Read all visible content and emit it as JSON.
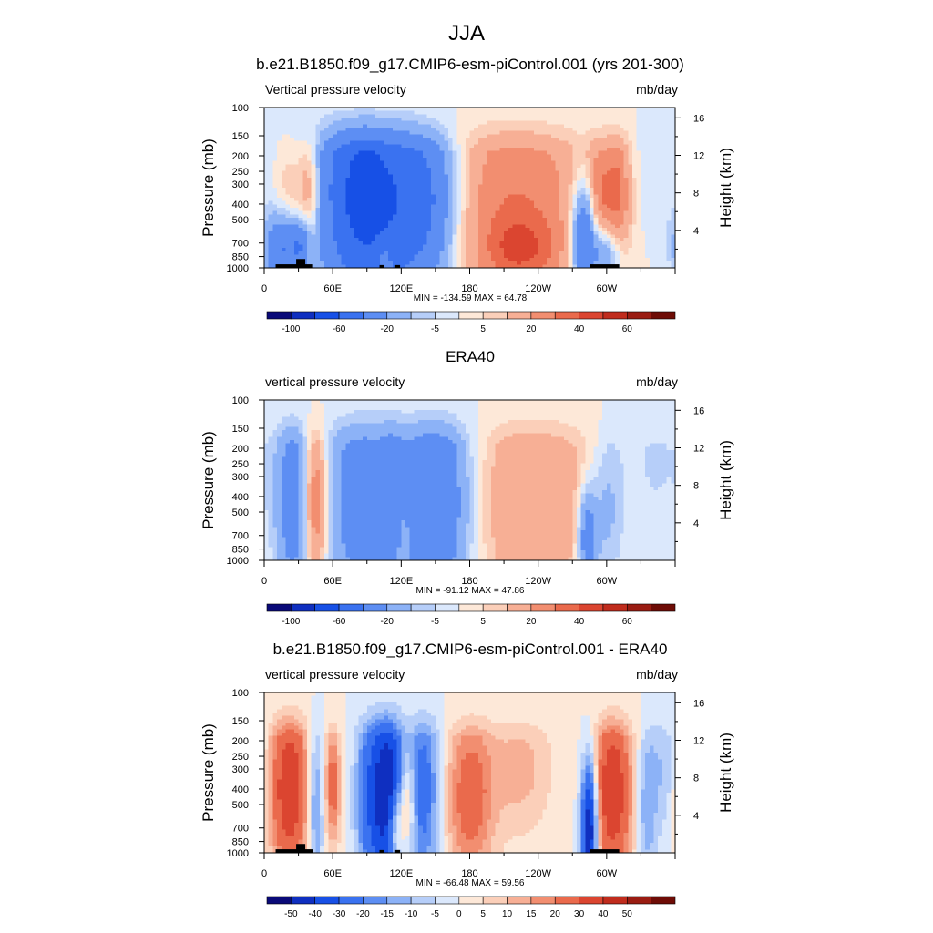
{
  "figure": {
    "title": "JJA",
    "colors": {
      "land": "#000000",
      "axis": "#000000"
    }
  },
  "chart_data": [
    {
      "type": "heatmap",
      "panel_title": "b.e21.B1850.f09_g17.CMIP6-esm-piControl.001 (yrs 201-300)",
      "left_label": "Vertical pressure velocity",
      "right_label": "mb/day",
      "ylabel": "Pressure (mb)",
      "ylabel_right": "Height (km)",
      "x_ticks": [
        "0",
        "60E",
        "120E",
        "180",
        "120W",
        "60W"
      ],
      "x_tick_values": [
        0,
        60,
        120,
        180,
        240,
        300
      ],
      "xlim": [
        0,
        360
      ],
      "y_ticks": [
        "100",
        "150",
        "200",
        "250",
        "300",
        "400",
        "500",
        "700",
        "850",
        "1000"
      ],
      "y_tick_values": [
        100,
        150,
        200,
        250,
        300,
        400,
        500,
        700,
        850,
        1000
      ],
      "ylim": [
        1000,
        100
      ],
      "height_ticks": [
        "4",
        "8",
        "12",
        "16"
      ],
      "height_tick_values": [
        4,
        8,
        12,
        16
      ],
      "stats": "MIN = -134.59  MAX =  64.78",
      "min": -134.59,
      "max": 64.78,
      "levels": [
        -120,
        -100,
        -80,
        -60,
        -40,
        -20,
        -10,
        -5,
        0,
        5,
        10,
        20,
        30,
        40,
        50,
        60,
        70
      ],
      "colorbar_labels": [
        "-100",
        "-60",
        "-20",
        "-5",
        "5",
        "20",
        "40",
        "60"
      ],
      "colorbar_label_positions": [
        1,
        3,
        5,
        7,
        9,
        11,
        13,
        15
      ],
      "colors": [
        "#0a0a78",
        "#0f2fc0",
        "#1750e6",
        "#3a72f0",
        "#5d8ef3",
        "#8cb2f7",
        "#b6cef9",
        "#dbe8fc",
        "#fde8d8",
        "#fbcfb9",
        "#f7af95",
        "#f28e70",
        "#ea6a4c",
        "#db4530",
        "#c02c1d",
        "#9a1c12",
        "#6e0c06"
      ],
      "features": [
        {
          "lon": 15,
          "p": 760,
          "w": 10,
          "h": 0.35,
          "v": -40
        },
        {
          "lon": 22,
          "p": 330,
          "w": 9,
          "h": 0.5,
          "v": 12
        },
        {
          "lon": 32,
          "p": 720,
          "w": 6,
          "h": 0.25,
          "v": -30
        },
        {
          "lon": 40,
          "p": 330,
          "w": 7,
          "h": 0.55,
          "v": 25
        },
        {
          "lon": 72,
          "p": 320,
          "w": 22,
          "h": 1.1,
          "v": -25
        },
        {
          "lon": 100,
          "p": 380,
          "w": 30,
          "h": 1.3,
          "v": -55
        },
        {
          "lon": 145,
          "p": 380,
          "w": 20,
          "h": 0.9,
          "v": -35
        },
        {
          "lon": 105,
          "p": 870,
          "w": 5,
          "h": 0.2,
          "v": 15
        },
        {
          "lon": 220,
          "p": 430,
          "w": 48,
          "h": 1.2,
          "v": 30
        },
        {
          "lon": 225,
          "p": 760,
          "w": 20,
          "h": 0.3,
          "v": 20
        },
        {
          "lon": 280,
          "p": 650,
          "w": 8,
          "h": 0.6,
          "v": -50
        },
        {
          "lon": 293,
          "p": 350,
          "w": 8,
          "h": 0.6,
          "v": 22
        },
        {
          "lon": 310,
          "p": 350,
          "w": 8,
          "h": 0.7,
          "v": 28
        },
        {
          "lon": 300,
          "p": 800,
          "w": 10,
          "h": 0.3,
          "v": -30
        },
        {
          "lon": 345,
          "p": 250,
          "w": 20,
          "h": 0.8,
          "v": -5
        }
      ],
      "land": [
        {
          "lon0": 10,
          "lon1": 42,
          "p": 950
        },
        {
          "lon0": 28,
          "lon1": 36,
          "p": 880
        },
        {
          "lon0": 101,
          "lon1": 105,
          "p": 960
        },
        {
          "lon0": 114,
          "lon1": 119,
          "p": 960
        },
        {
          "lon0": 285,
          "lon1": 311,
          "p": 950
        }
      ]
    },
    {
      "type": "heatmap",
      "panel_title": "ERA40",
      "left_label": "vertical pressure velocity",
      "right_label": "mb/day",
      "ylabel": "Pressure (mb)",
      "ylabel_right": "Height (km)",
      "x_ticks": [
        "0",
        "60E",
        "120E",
        "180",
        "120W",
        "60W"
      ],
      "x_tick_values": [
        0,
        60,
        120,
        180,
        240,
        300
      ],
      "xlim": [
        0,
        360
      ],
      "y_ticks": [
        "100",
        "150",
        "200",
        "250",
        "300",
        "400",
        "500",
        "700",
        "850",
        "1000"
      ],
      "y_tick_values": [
        100,
        150,
        200,
        250,
        300,
        400,
        500,
        700,
        850,
        1000
      ],
      "ylim": [
        1000,
        100
      ],
      "height_ticks": [
        "4",
        "8",
        "12",
        "16"
      ],
      "height_tick_values": [
        4,
        8,
        12,
        16
      ],
      "stats": "MIN = -91.12  MAX =  47.86",
      "min": -91.12,
      "max": 47.86,
      "levels": [
        -120,
        -100,
        -80,
        -60,
        -40,
        -20,
        -10,
        -5,
        0,
        5,
        10,
        20,
        30,
        40,
        50,
        60,
        70
      ],
      "colorbar_labels": [
        "-100",
        "-60",
        "-20",
        "-5",
        "5",
        "20",
        "40",
        "60"
      ],
      "colorbar_label_positions": [
        1,
        3,
        5,
        7,
        9,
        11,
        13,
        15
      ],
      "colors": [
        "#0a0a78",
        "#0f2fc0",
        "#1750e6",
        "#3a72f0",
        "#5d8ef3",
        "#8cb2f7",
        "#b6cef9",
        "#dbe8fc",
        "#fde8d8",
        "#fbcfb9",
        "#f7af95",
        "#f28e70",
        "#ea6a4c",
        "#db4530",
        "#c02c1d",
        "#9a1c12",
        "#6e0c06"
      ],
      "features": [
        {
          "lon": 25,
          "p": 420,
          "w": 10,
          "h": 1.0,
          "v": -30
        },
        {
          "lon": 45,
          "p": 430,
          "w": 7,
          "h": 0.8,
          "v": 35
        },
        {
          "lon": 85,
          "p": 400,
          "w": 22,
          "h": 1.2,
          "v": -30
        },
        {
          "lon": 150,
          "p": 430,
          "w": 22,
          "h": 1.2,
          "v": -40
        },
        {
          "lon": 112,
          "p": 400,
          "w": 8,
          "h": 0.9,
          "v": -15
        },
        {
          "lon": 122,
          "p": 700,
          "w": 5,
          "h": 0.4,
          "v": 12
        },
        {
          "lon": 235,
          "p": 430,
          "w": 40,
          "h": 1.2,
          "v": 20
        },
        {
          "lon": 283,
          "p": 720,
          "w": 6,
          "h": 0.5,
          "v": -35
        },
        {
          "lon": 300,
          "p": 500,
          "w": 10,
          "h": 0.8,
          "v": -15
        },
        {
          "lon": 340,
          "p": 250,
          "w": 25,
          "h": 0.9,
          "v": -6
        }
      ],
      "land": []
    },
    {
      "type": "heatmap",
      "panel_title": "b.e21.B1850.f09_g17.CMIP6-esm-piControl.001 - ERA40",
      "left_label": "vertical pressure velocity",
      "right_label": "mb/day",
      "ylabel": "Pressure (mb)",
      "ylabel_right": "Height (km)",
      "x_ticks": [
        "0",
        "60E",
        "120E",
        "180",
        "120W",
        "60W"
      ],
      "x_tick_values": [
        0,
        60,
        120,
        180,
        240,
        300
      ],
      "xlim": [
        0,
        360
      ],
      "y_ticks": [
        "100",
        "150",
        "200",
        "250",
        "300",
        "400",
        "500",
        "700",
        "850",
        "1000"
      ],
      "y_tick_values": [
        100,
        150,
        200,
        250,
        300,
        400,
        500,
        700,
        850,
        1000
      ],
      "ylim": [
        1000,
        100
      ],
      "height_ticks": [
        "4",
        "8",
        "12",
        "16"
      ],
      "height_tick_values": [
        4,
        8,
        12,
        16
      ],
      "stats": "MIN = -66.48  MAX =  59.56",
      "min": -66.48,
      "max": 59.56,
      "levels": [
        -60,
        -50,
        -40,
        -30,
        -20,
        -15,
        -10,
        -5,
        0,
        5,
        10,
        15,
        20,
        30,
        40,
        50,
        60
      ],
      "colorbar_labels": [
        "-50",
        "-40",
        "-30",
        "-20",
        "-15",
        "-10",
        "-5",
        "0",
        "5",
        "10",
        "15",
        "20",
        "30",
        "40",
        "50"
      ],
      "colorbar_label_positions": [
        1,
        2,
        3,
        4,
        5,
        6,
        7,
        8,
        9,
        10,
        11,
        12,
        13,
        14,
        15
      ],
      "colors": [
        "#0a0a78",
        "#0f2fc0",
        "#1750e6",
        "#3a72f0",
        "#5d8ef3",
        "#8cb2f7",
        "#b6cef9",
        "#dbe8fc",
        "#fde8d8",
        "#fbcfb9",
        "#f7af95",
        "#f28e70",
        "#ea6a4c",
        "#db4530",
        "#c02c1d",
        "#9a1c12",
        "#6e0c06"
      ],
      "features": [
        {
          "lon": 22,
          "p": 400,
          "w": 12,
          "h": 0.9,
          "v": 40
        },
        {
          "lon": 45,
          "p": 500,
          "w": 5,
          "h": 0.8,
          "v": -20
        },
        {
          "lon": 60,
          "p": 380,
          "w": 5,
          "h": 0.6,
          "v": 25
        },
        {
          "lon": 90,
          "p": 450,
          "w": 8,
          "h": 1.0,
          "v": -20
        },
        {
          "lon": 108,
          "p": 430,
          "w": 10,
          "h": 1.0,
          "v": -50
        },
        {
          "lon": 115,
          "p": 700,
          "w": 5,
          "h": 0.4,
          "v": 25
        },
        {
          "lon": 125,
          "p": 500,
          "w": 5,
          "h": 0.5,
          "v": 20
        },
        {
          "lon": 140,
          "p": 400,
          "w": 10,
          "h": 1.0,
          "v": -25
        },
        {
          "lon": 180,
          "p": 450,
          "w": 15,
          "h": 0.9,
          "v": 25
        },
        {
          "lon": 225,
          "p": 300,
          "w": 20,
          "h": 0.7,
          "v": 12
        },
        {
          "lon": 285,
          "p": 700,
          "w": 5,
          "h": 0.7,
          "v": -55
        },
        {
          "lon": 305,
          "p": 420,
          "w": 12,
          "h": 0.9,
          "v": 40
        },
        {
          "lon": 335,
          "p": 500,
          "w": 6,
          "h": 0.8,
          "v": -15
        },
        {
          "lon": 350,
          "p": 300,
          "w": 8,
          "h": 0.7,
          "v": -10
        }
      ],
      "land": [
        {
          "lon0": 10,
          "lon1": 43,
          "p": 950
        },
        {
          "lon0": 28,
          "lon1": 36,
          "p": 880
        },
        {
          "lon0": 101,
          "lon1": 105,
          "p": 960
        },
        {
          "lon0": 114,
          "lon1": 119,
          "p": 960
        },
        {
          "lon0": 285,
          "lon1": 311,
          "p": 950
        }
      ]
    }
  ]
}
